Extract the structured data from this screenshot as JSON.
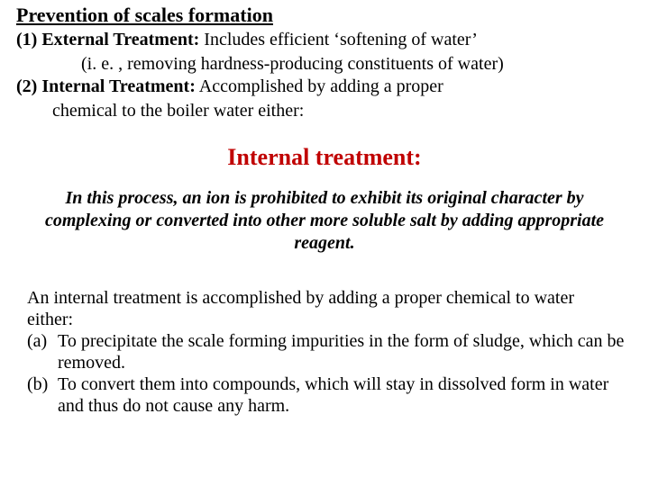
{
  "title": "Prevention of scales formation",
  "item1_label": "(1) External Treatment:",
  "item1_text": "  Includes efficient ‘softening of water’",
  "item1_note": "(i. e. , removing hardness-producing constituents of water)",
  "item2_label": "(2)  Internal Treatment:",
  "item2_text": "  Accomplished  by  adding  a  proper",
  "item2_note": "chemical to the boiler water either:",
  "heading": "Internal treatment:",
  "emphasis": "In this process, an ion is prohibited to exhibit its original character by complexing or converted into other more soluble salt by adding appropriate reagent.",
  "para": "An internal treatment is accomplished by adding a proper chemical to water either:",
  "sub_a_marker": "(a)",
  "sub_a_text": "To precipitate the scale forming impurities in the form of sludge, which can be removed.",
  "sub_b_marker": "(b)",
  "sub_b_text": "To convert them into compounds, which will stay in dissolved form in water and thus do not cause any harm.",
  "colors": {
    "heading": "#c00000",
    "text": "#000000",
    "background": "#ffffff"
  }
}
